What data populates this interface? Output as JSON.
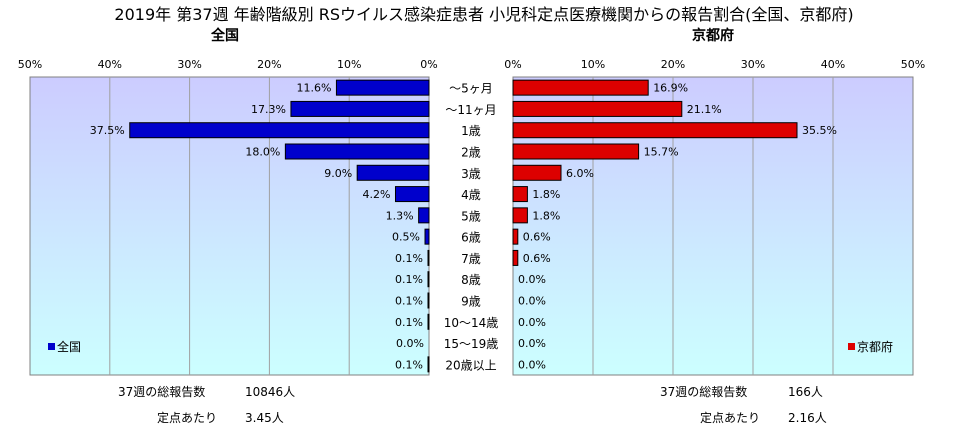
{
  "title": "2019年 第37週 年齢階級別 RSウイルス感染症患者 小児科定点医療機関からの報告割合(全国、京都府)",
  "ticks": [
    "50%",
    "40%",
    "30%",
    "20%",
    "10%",
    "0%"
  ],
  "ticks_right": [
    "0%",
    "10%",
    "20%",
    "30%",
    "40%",
    "50%"
  ],
  "colors": {
    "national": "#0000cc",
    "kyoto": "#dd0000",
    "plot_top": "#ccccff",
    "plot_bottom": "#ccffff"
  },
  "summary": {
    "national": {
      "total_label": "37週の総報告数",
      "total_value": "10846人",
      "per_label": "定点あたり",
      "per_value": "3.45人"
    },
    "kyoto": {
      "total_label": "37週の総報告数",
      "total_value": "166人",
      "per_label": "定点あたり",
      "per_value": "2.16人"
    }
  },
  "chart_data": {
    "type": "bar",
    "orientation": "horizontal",
    "categories": [
      "～5ヶ月",
      "～11ヶ月",
      "1歳",
      "2歳",
      "3歳",
      "4歳",
      "5歳",
      "6歳",
      "7歳",
      "8歳",
      "9歳",
      "10～14歳",
      "15～19歳",
      "20歳以上"
    ],
    "series": [
      {
        "name": "全国",
        "title": "全国",
        "values": [
          11.6,
          17.3,
          37.5,
          18.0,
          9.0,
          4.2,
          1.3,
          0.5,
          0.1,
          0.1,
          0.1,
          0.1,
          0.0,
          0.1
        ],
        "labels": [
          "11.6%",
          "17.3%",
          "37.5%",
          "18.0%",
          "9.0%",
          "4.2%",
          "1.3%",
          "0.5%",
          "0.1%",
          "0.1%",
          "0.1%",
          "0.1%",
          "0.0%",
          "0.1%"
        ]
      },
      {
        "name": "京都府",
        "title": "京都府",
        "values": [
          16.9,
          21.1,
          35.5,
          15.7,
          6.0,
          1.8,
          1.8,
          0.6,
          0.6,
          0.0,
          0.0,
          0.0,
          0.0,
          0.0
        ],
        "labels": [
          "16.9%",
          "21.1%",
          "35.5%",
          "15.7%",
          "6.0%",
          "1.8%",
          "1.8%",
          "0.6%",
          "0.6%",
          "0.0%",
          "0.0%",
          "0.0%",
          "0.0%",
          "0.0%"
        ]
      }
    ],
    "xlim": [
      0,
      50
    ],
    "legend": "bottom-left / bottom-right",
    "grid": true
  }
}
